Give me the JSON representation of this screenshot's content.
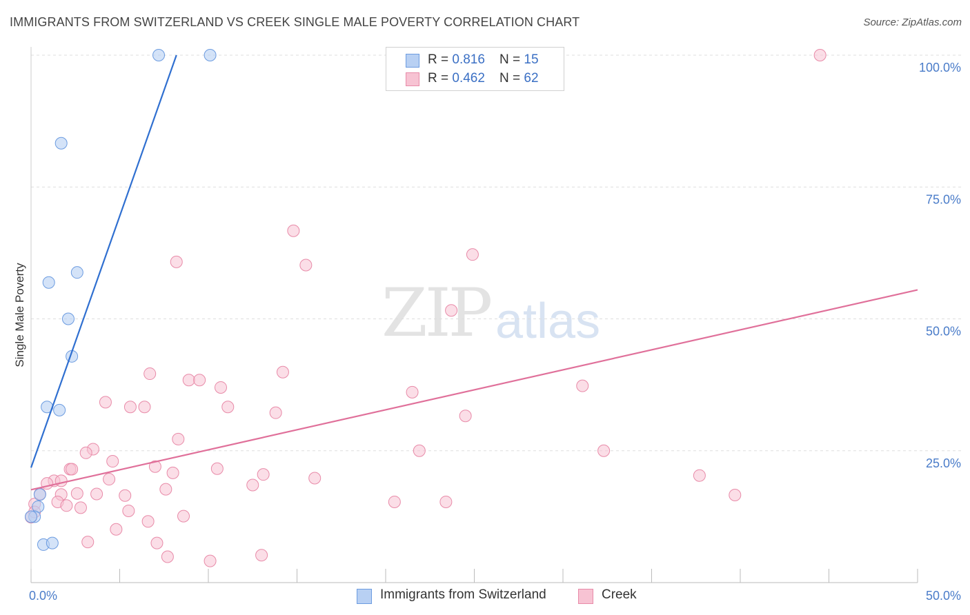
{
  "header": {
    "title": "IMMIGRANTS FROM SWITZERLAND VS CREEK SINGLE MALE POVERTY CORRELATION CHART",
    "source": "Source: ZipAtlas.com"
  },
  "watermark": {
    "zip": "ZIP",
    "atlas": "atlas"
  },
  "legend": {
    "rows": [
      {
        "r_label": "R = ",
        "r_value": "0.816",
        "n_label": "N = ",
        "n_value": "15"
      },
      {
        "r_label": "R = ",
        "r_value": "0.462",
        "n_label": "N = ",
        "n_value": "62"
      }
    ]
  },
  "bottom_legend": {
    "series1": "Immigrants from Switzerland",
    "series2": "Creek"
  },
  "colors": {
    "blue_fill": "#b8d0f3",
    "blue_stroke": "#6b9be0",
    "blue_line": "#2f6fd0",
    "pink_fill": "#f7c3d3",
    "pink_stroke": "#e88aa8",
    "pink_line": "#e0709a",
    "grid": "#dddddd",
    "tick_text": "#4a7cc9"
  },
  "chart_data": {
    "type": "scatter",
    "title": "IMMIGRANTS FROM SWITZERLAND VS CREEK SINGLE MALE POVERTY CORRELATION CHART",
    "xlabel": "",
    "ylabel": "Single Male Poverty",
    "xlim": [
      0,
      50
    ],
    "ylim": [
      0,
      100
    ],
    "x_tick_labels": [
      "0.0%",
      "50.0%"
    ],
    "y_ticks": [
      25,
      50,
      75,
      100
    ],
    "y_tick_labels": [
      "25.0%",
      "50.0%",
      "75.0%",
      "100.0%"
    ],
    "grid": "horizontal dashed",
    "legend_position": "top-center",
    "series": [
      {
        "name": "Immigrants from Switzerland",
        "color": "#6b9be0",
        "points": [
          [
            7.2,
            100
          ],
          [
            10.1,
            100
          ],
          [
            1.7,
            83.3
          ],
          [
            1.0,
            56.9
          ],
          [
            2.6,
            58.8
          ],
          [
            2.1,
            50.0
          ],
          [
            2.3,
            42.9
          ],
          [
            0.9,
            33.3
          ],
          [
            1.6,
            32.7
          ],
          [
            0.5,
            16.7
          ],
          [
            0.4,
            14.4
          ],
          [
            0.2,
            12.5
          ],
          [
            0.0,
            12.5
          ],
          [
            0.7,
            7.2
          ],
          [
            1.2,
            7.5
          ]
        ],
        "trend": {
          "x": [
            0.0,
            8.2
          ],
          "y": [
            21.8,
            100
          ]
        }
      },
      {
        "name": "Creek",
        "color": "#e88aa8",
        "points": [
          [
            44.5,
            100
          ],
          [
            14.8,
            66.7
          ],
          [
            24.9,
            62.2
          ],
          [
            8.2,
            60.8
          ],
          [
            15.5,
            60.2
          ],
          [
            23.7,
            51.6
          ],
          [
            6.7,
            39.6
          ],
          [
            14.2,
            39.9
          ],
          [
            8.9,
            38.4
          ],
          [
            9.5,
            38.4
          ],
          [
            10.7,
            37.0
          ],
          [
            31.1,
            37.3
          ],
          [
            21.5,
            36.1
          ],
          [
            4.2,
            34.2
          ],
          [
            5.6,
            33.3
          ],
          [
            6.4,
            33.3
          ],
          [
            11.1,
            33.3
          ],
          [
            13.8,
            32.2
          ],
          [
            24.5,
            31.6
          ],
          [
            8.3,
            27.2
          ],
          [
            3.5,
            25.3
          ],
          [
            3.1,
            24.6
          ],
          [
            21.9,
            25.0
          ],
          [
            32.3,
            25.0
          ],
          [
            4.6,
            23.0
          ],
          [
            7.0,
            22.0
          ],
          [
            10.5,
            21.6
          ],
          [
            2.2,
            21.5
          ],
          [
            2.3,
            21.5
          ],
          [
            8.0,
            20.8
          ],
          [
            13.1,
            20.5
          ],
          [
            37.7,
            20.3
          ],
          [
            16.0,
            19.8
          ],
          [
            4.4,
            19.6
          ],
          [
            1.3,
            19.3
          ],
          [
            1.7,
            19.3
          ],
          [
            0.9,
            18.8
          ],
          [
            12.5,
            18.5
          ],
          [
            7.6,
            17.7
          ],
          [
            0.5,
            16.8
          ],
          [
            1.7,
            16.7
          ],
          [
            2.6,
            16.9
          ],
          [
            3.7,
            16.8
          ],
          [
            5.3,
            16.5
          ],
          [
            39.7,
            16.6
          ],
          [
            1.5,
            15.3
          ],
          [
            20.5,
            15.3
          ],
          [
            23.4,
            15.3
          ],
          [
            2.0,
            14.6
          ],
          [
            2.8,
            14.2
          ],
          [
            5.5,
            13.6
          ],
          [
            8.6,
            12.6
          ],
          [
            6.6,
            11.6
          ],
          [
            4.8,
            10.1
          ],
          [
            0.2,
            14.9
          ],
          [
            3.2,
            7.7
          ],
          [
            7.1,
            7.5
          ],
          [
            7.7,
            4.9
          ],
          [
            13.0,
            5.2
          ],
          [
            10.1,
            4.1
          ],
          [
            0.0,
            12.4
          ],
          [
            0.2,
            13.4
          ]
        ],
        "trend": {
          "x": [
            0.0,
            50.0
          ],
          "y": [
            17.6,
            55.5
          ]
        }
      }
    ]
  }
}
